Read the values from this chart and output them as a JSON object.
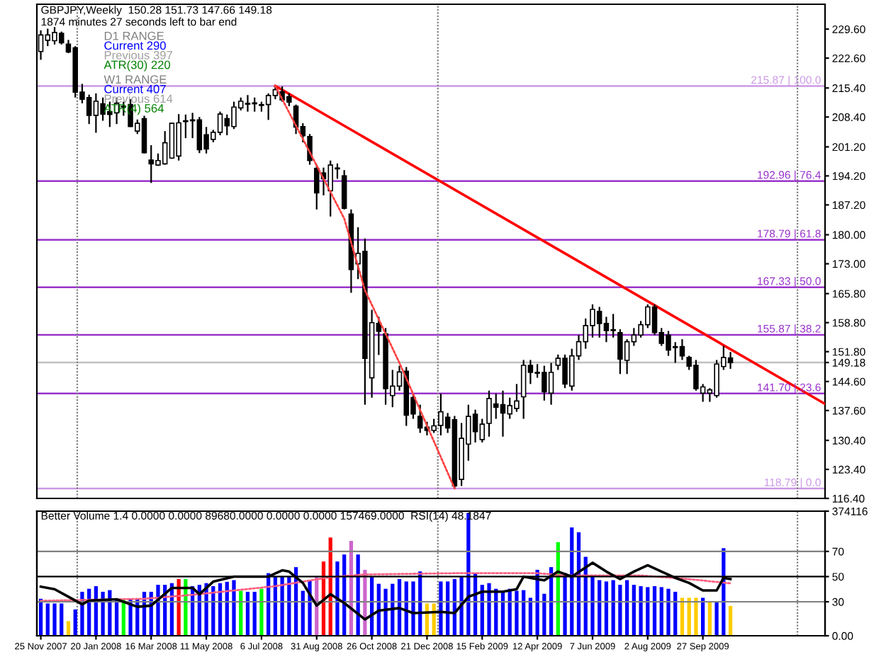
{
  "chart_data": [
    {
      "type": "candlestick",
      "title": "GBPJPY,Weekly  150.28 151.73 147.66 149.18",
      "annotations": [
        "1874 minutes 27 seconds left to bar end",
        "D1 RANGE",
        "Current 290",
        "Previous 397",
        "ATR(30) 220",
        "W1 RANGE",
        "Current 407",
        "Previous 614",
        "ATR(4) 564"
      ],
      "x": [
        "2007-11-25",
        "2007-12-02",
        "2007-12-09",
        "2007-12-16",
        "2007-12-23",
        "2007-12-30",
        "2008-01-06",
        "2008-01-13",
        "2008-01-20",
        "2008-01-27",
        "2008-02-03",
        "2008-02-10",
        "2008-02-17",
        "2008-02-24",
        "2008-03-02",
        "2008-03-09",
        "2008-03-16",
        "2008-03-23",
        "2008-03-30",
        "2008-04-06",
        "2008-04-13",
        "2008-04-20",
        "2008-04-27",
        "2008-05-04",
        "2008-05-11",
        "2008-05-18",
        "2008-05-25",
        "2008-06-01",
        "2008-06-08",
        "2008-06-15",
        "2008-06-22",
        "2008-06-29",
        "2008-07-06",
        "2008-07-13",
        "2008-07-20",
        "2008-07-27",
        "2008-08-03",
        "2008-08-10",
        "2008-08-17",
        "2008-08-24",
        "2008-08-31",
        "2008-09-07",
        "2008-09-14",
        "2008-09-21",
        "2008-09-28",
        "2008-10-05",
        "2008-10-12",
        "2008-10-19",
        "2008-10-26",
        "2008-11-02",
        "2008-11-09",
        "2008-11-16",
        "2008-11-23",
        "2008-11-30",
        "2008-12-07",
        "2008-12-14",
        "2008-12-21",
        "2008-12-28",
        "2009-01-04",
        "2009-01-11",
        "2009-01-18",
        "2009-01-25",
        "2009-02-01",
        "2009-02-08",
        "2009-02-15",
        "2009-02-22",
        "2009-03-01",
        "2009-03-08",
        "2009-03-15",
        "2009-03-22",
        "2009-03-29",
        "2009-04-05",
        "2009-04-12",
        "2009-04-19",
        "2009-04-26",
        "2009-05-03",
        "2009-05-10",
        "2009-05-17",
        "2009-05-24",
        "2009-05-31",
        "2009-06-07",
        "2009-06-14",
        "2009-06-21",
        "2009-06-28",
        "2009-07-05",
        "2009-07-12",
        "2009-07-19",
        "2009-07-26",
        "2009-08-02",
        "2009-08-09",
        "2009-08-16",
        "2009-08-23",
        "2009-08-30",
        "2009-09-06",
        "2009-09-13",
        "2009-09-20",
        "2009-09-27",
        "2009-10-04",
        "2009-10-11",
        "2009-10-18",
        "2009-10-25"
      ],
      "ohlc": [
        [
          224.2,
          229.3,
          222.2,
          228.2
        ],
        [
          226.9,
          229.7,
          225.5,
          228.2
        ],
        [
          226.8,
          230.1,
          225.9,
          228.8
        ],
        [
          228.6,
          229.0,
          225.9,
          226.3
        ],
        [
          226.0,
          227.0,
          223.8,
          224.1
        ],
        [
          225.1,
          225.5,
          213.1,
          214.4
        ],
        [
          214.4,
          216.4,
          211.7,
          212.7
        ],
        [
          213.1,
          213.8,
          206.7,
          208.8
        ],
        [
          208.8,
          214.1,
          204.6,
          212.2
        ],
        [
          211.6,
          213.1,
          207.5,
          209.1
        ],
        [
          209.7,
          212.1,
          206.0,
          209.0
        ],
        [
          209.4,
          213.1,
          206.7,
          211.7
        ],
        [
          211.0,
          212.1,
          208.7,
          210.8
        ],
        [
          211.4,
          212.7,
          206.0,
          206.1
        ],
        [
          205.0,
          207.8,
          204.3,
          206.9
        ],
        [
          208.0,
          208.7,
          199.6,
          199.8
        ],
        [
          198.0,
          201.6,
          192.5,
          197.1
        ],
        [
          196.8,
          199.6,
          196.6,
          197.9
        ],
        [
          197.1,
          205.0,
          196.9,
          202.2
        ],
        [
          198.5,
          207.0,
          198.3,
          206.9
        ],
        [
          199.0,
          209.1,
          197.9,
          207.0
        ],
        [
          207.5,
          209.0,
          203.3,
          207.3
        ],
        [
          207.7,
          209.4,
          203.3,
          207.5
        ],
        [
          207.7,
          208.4,
          199.7,
          200.5
        ],
        [
          204.1,
          206.0,
          199.6,
          200.7
        ],
        [
          203.0,
          205.3,
          202.3,
          204.7
        ],
        [
          204.7,
          209.7,
          204.0,
          209.1
        ],
        [
          208.0,
          209.0,
          204.0,
          206.3
        ],
        [
          206.1,
          212.1,
          205.5,
          210.8
        ],
        [
          210.6,
          213.1,
          210.0,
          212.2
        ],
        [
          211.7,
          213.7,
          209.7,
          211.5
        ],
        [
          211.6,
          213.1,
          209.7,
          211.8
        ],
        [
          211.4,
          212.1,
          209.7,
          211.2
        ],
        [
          211.4,
          214.1,
          207.7,
          213.6
        ],
        [
          213.6,
          215.9,
          212.7,
          215.0
        ],
        [
          214.5,
          215.8,
          212.1,
          212.5
        ],
        [
          213.3,
          214.1,
          211.0,
          212.0
        ],
        [
          211.0,
          211.4,
          204.3,
          206.0
        ],
        [
          206.1,
          206.9,
          202.3,
          203.9
        ],
        [
          203.7,
          204.3,
          196.9,
          197.9
        ],
        [
          196.0,
          196.9,
          186.1,
          190.1
        ],
        [
          194.9,
          196.2,
          189.5,
          193.5
        ],
        [
          190.6,
          197.9,
          184.4,
          196.8
        ],
        [
          196.1,
          197.2,
          193.5,
          195.9
        ],
        [
          194.2,
          195.6,
          186.1,
          186.4
        ],
        [
          185.0,
          186.1,
          166.0,
          171.6
        ],
        [
          173.0,
          181.8,
          169.3,
          175.5
        ],
        [
          176.0,
          179.1,
          139.0,
          150.2
        ],
        [
          145.5,
          161.9,
          140.7,
          158.8
        ],
        [
          158.6,
          160.2,
          151.0,
          156.7
        ],
        [
          156.1,
          157.5,
          139.0,
          142.9
        ],
        [
          141.2,
          147.4,
          138.4,
          143.5
        ],
        [
          143.5,
          148.4,
          142.4,
          146.9
        ],
        [
          147.1,
          148.1,
          133.9,
          136.5
        ],
        [
          140.7,
          141.7,
          135.6,
          136.8
        ],
        [
          136.2,
          139.0,
          132.2,
          133.4
        ],
        [
          133.6,
          134.9,
          131.6,
          132.8
        ],
        [
          132.8,
          135.6,
          132.2,
          133.9
        ],
        [
          134.0,
          141.7,
          131.6,
          137.3
        ],
        [
          136.0,
          137.0,
          132.2,
          133.4
        ],
        [
          135.4,
          136.3,
          118.8,
          119.4
        ],
        [
          121.0,
          134.6,
          119.4,
          130.9
        ],
        [
          129.5,
          139.0,
          125.5,
          136.2
        ],
        [
          136.7,
          137.8,
          129.9,
          132.5
        ],
        [
          130.6,
          135.6,
          129.9,
          134.3
        ],
        [
          134.5,
          142.4,
          131.3,
          140.5
        ],
        [
          139.2,
          141.7,
          135.6,
          138.4
        ],
        [
          139.0,
          142.4,
          131.3,
          137.0
        ],
        [
          136.8,
          140.7,
          135.6,
          138.8
        ],
        [
          138.1,
          144.0,
          137.3,
          139.9
        ],
        [
          140.9,
          149.8,
          135.6,
          148.5
        ],
        [
          148.5,
          149.8,
          144.0,
          146.8
        ],
        [
          146.8,
          148.8,
          145.5,
          146.6
        ],
        [
          146.8,
          148.4,
          140.0,
          142.1
        ],
        [
          141.8,
          149.1,
          139.0,
          146.8
        ],
        [
          148.5,
          151.1,
          147.4,
          150.2
        ],
        [
          150.2,
          151.1,
          143.0,
          144.0
        ],
        [
          143.5,
          152.5,
          142.4,
          150.8
        ],
        [
          150.8,
          155.8,
          149.8,
          154.2
        ],
        [
          154.2,
          159.8,
          152.5,
          158.1
        ],
        [
          158.1,
          163.2,
          155.2,
          162.0
        ],
        [
          161.5,
          162.6,
          155.2,
          158.6
        ],
        [
          158.6,
          160.2,
          154.1,
          156.9
        ],
        [
          157.1,
          160.9,
          155.2,
          156.9
        ],
        [
          156.4,
          157.2,
          146.4,
          150.0
        ],
        [
          149.7,
          154.8,
          146.4,
          154.2
        ],
        [
          154.2,
          157.5,
          153.2,
          155.8
        ],
        [
          155.8,
          159.2,
          155.2,
          158.3
        ],
        [
          158.3,
          163.2,
          157.5,
          162.6
        ],
        [
          162.6,
          163.2,
          155.8,
          156.4
        ],
        [
          156.4,
          157.5,
          153.2,
          153.8
        ],
        [
          155.8,
          156.8,
          150.8,
          152.2
        ],
        [
          153.0,
          154.1,
          149.1,
          152.8
        ],
        [
          153.0,
          154.8,
          149.8,
          150.8
        ],
        [
          150.4,
          150.8,
          147.4,
          148.3
        ],
        [
          148.5,
          149.8,
          142.4,
          142.9
        ],
        [
          141.8,
          144.0,
          139.7,
          143.3
        ],
        [
          141.8,
          143.0,
          139.7,
          142.6
        ],
        [
          141.2,
          149.8,
          140.7,
          148.8
        ],
        [
          148.2,
          153.2,
          147.4,
          150.4
        ],
        [
          150.28,
          151.73,
          147.66,
          149.18
        ]
      ],
      "series": [
        {
          "type": "line",
          "color": "#ff0000",
          "line_style": "solid",
          "x": [
            "2008-07-20",
            "2010-01-29"
          ],
          "values": [
            215.9,
            139.2
          ]
        },
        {
          "type": "line",
          "color": "#ff4040",
          "line_style": "dotted",
          "x": [
            "2008-07-20",
            "2008-09-28",
            "2008-10-19",
            "2008-11-23",
            "2009-01-18"
          ],
          "values": [
            215.9,
            183.9,
            166.6,
            149.1,
            118.8
          ]
        }
      ],
      "xlim": [
        "2007-11-21",
        "2010-01-29"
      ],
      "ylim": [
        116.4,
        235.6
      ],
      "yticks": [
        {
          "value": 229.6,
          "label": "229.60"
        },
        {
          "value": 222.6,
          "label": "222.60"
        },
        {
          "value": 215.4,
          "label": "215.40"
        },
        {
          "value": 208.4,
          "label": "208.40"
        },
        {
          "value": 201.2,
          "label": "201.20"
        },
        {
          "value": 194.2,
          "label": "194.20"
        },
        {
          "value": 187.2,
          "label": "187.20"
        },
        {
          "value": 180,
          "label": "180.00"
        },
        {
          "value": 173,
          "label": "173.00"
        },
        {
          "value": 165.8,
          "label": "165.80"
        },
        {
          "value": 158.8,
          "label": "158.80"
        },
        {
          "value": 151.8,
          "label": "151.80"
        },
        {
          "value": 149.18,
          "label": "149.18"
        },
        {
          "value": 144.6,
          "label": "144.60"
        },
        {
          "value": 137.6,
          "label": "137.60"
        },
        {
          "value": 130.4,
          "label": "130.40"
        },
        {
          "value": 123.4,
          "label": "123.40"
        },
        {
          "value": 116.4,
          "label": "116.40"
        }
      ],
      "tick_labels": "y",
      "ref_lines": [
        {
          "axis": "y",
          "value": 215.87,
          "label": "215.87 | 100.0",
          "color": "#cc99e6",
          "line_style": "solid"
        },
        {
          "axis": "y",
          "value": 192.96,
          "label": "192.96 | 76.4",
          "color": "#9933cc",
          "line_style": "solid"
        },
        {
          "axis": "y",
          "value": 178.79,
          "label": "178.79 | 61.8",
          "color": "#9933cc",
          "line_style": "solid"
        },
        {
          "axis": "y",
          "value": 167.33,
          "label": "167.33 | 50.0",
          "color": "#9933cc",
          "line_style": "solid"
        },
        {
          "axis": "y",
          "value": 155.87,
          "label": "155.87 | 38.2",
          "color": "#9933cc",
          "line_style": "solid"
        },
        {
          "axis": "y",
          "value": 141.7,
          "label": "141.70 | 23.6",
          "color": "#9933cc",
          "line_style": "solid"
        },
        {
          "axis": "y",
          "value": 118.79,
          "label": "118.79 | 0.0",
          "color": "#cc99e6",
          "line_style": "solid"
        },
        {
          "axis": "y",
          "value": 149.18,
          "color": "#c0c0c0",
          "line_style": "solid"
        },
        {
          "axis": "x",
          "value": "2008-01-01",
          "color": "#808080",
          "line_style": "dotted"
        },
        {
          "axis": "x",
          "value": "2009-01-01",
          "color": "#808080",
          "line_style": "dotted"
        },
        {
          "axis": "x",
          "value": "2010-01-01",
          "color": "#808080",
          "line_style": "dotted"
        }
      ]
    },
    {
      "type": "bar",
      "annotations": [
        "Better Volume 1.4 0.0000 0.0000 89680.0000 0.0000 0.0000 157469.0000  RSI(14) 48.1847"
      ],
      "x": [
        "2007-11-25",
        "2007-12-02",
        "2007-12-09",
        "2007-12-16",
        "2007-12-23",
        "2007-12-30",
        "2008-01-06",
        "2008-01-13",
        "2008-01-20",
        "2008-01-27",
        "2008-02-03",
        "2008-02-10",
        "2008-02-17",
        "2008-02-24",
        "2008-03-02",
        "2008-03-09",
        "2008-03-16",
        "2008-03-23",
        "2008-03-30",
        "2008-04-06",
        "2008-04-13",
        "2008-04-20",
        "2008-04-27",
        "2008-05-04",
        "2008-05-11",
        "2008-05-18",
        "2008-05-25",
        "2008-06-01",
        "2008-06-08",
        "2008-06-15",
        "2008-06-22",
        "2008-06-29",
        "2008-07-06",
        "2008-07-13",
        "2008-07-20",
        "2008-07-27",
        "2008-08-03",
        "2008-08-10",
        "2008-08-17",
        "2008-08-24",
        "2008-08-31",
        "2008-09-07",
        "2008-09-14",
        "2008-09-21",
        "2008-09-28",
        "2008-10-05",
        "2008-10-12",
        "2008-10-19",
        "2008-10-26",
        "2008-11-02",
        "2008-11-09",
        "2008-11-16",
        "2008-11-23",
        "2008-11-30",
        "2008-12-07",
        "2008-12-14",
        "2008-12-21",
        "2008-12-28",
        "2009-01-04",
        "2009-01-11",
        "2009-01-18",
        "2009-01-25",
        "2009-02-01",
        "2009-02-08",
        "2009-02-15",
        "2009-02-22",
        "2009-03-01",
        "2009-03-08",
        "2009-03-15",
        "2009-03-22",
        "2009-03-29",
        "2009-04-05",
        "2009-04-12",
        "2009-04-19",
        "2009-04-26",
        "2009-05-03",
        "2009-05-10",
        "2009-05-17",
        "2009-05-24",
        "2009-05-31",
        "2009-06-07",
        "2009-06-14",
        "2009-06-21",
        "2009-06-28",
        "2009-07-05",
        "2009-07-12",
        "2009-07-19",
        "2009-07-26",
        "2009-08-02",
        "2009-08-09",
        "2009-08-16",
        "2009-08-23",
        "2009-08-30",
        "2009-09-06",
        "2009-09-13",
        "2009-09-20",
        "2009-09-27",
        "2009-10-04",
        "2009-10-11",
        "2009-10-18",
        "2009-10-25"
      ],
      "series": [
        {
          "type": "bar",
          "values": [
            111000,
            97000,
            97000,
            97000,
            44000,
            79000,
            132000,
            141000,
            149000,
            132000,
            137000,
            111000,
            111000,
            111000,
            111000,
            132000,
            132000,
            153000,
            153000,
            158000,
            170000,
            170000,
            149000,
            153000,
            158000,
            149000,
            158000,
            162000,
            167000,
            135000,
            132000,
            132000,
            141000,
            188000,
            179000,
            179000,
            179000,
            206000,
            135000,
            167000,
            176000,
            223000,
            295000,
            223000,
            244000,
            285000,
            244000,
            198000,
            176000,
            156000,
            141000,
            156000,
            170000,
            163000,
            163000,
            193000,
            97000,
            97000,
            163000,
            163000,
            170000,
            176000,
            369000,
            188000,
            153000,
            158000,
            141000,
            135000,
            141000,
            135000,
            137000,
            114000,
            198000,
            126000,
            206000,
            281000,
            188000,
            325000,
            311000,
            237000,
            181000,
            167000,
            163000,
            167000,
            153000,
            167000,
            153000,
            149000,
            146000,
            149000,
            146000,
            141000,
            132000,
            114000,
            114000,
            114000,
            114000,
            100000,
            100000,
            263000,
            89680
          ],
          "colors": [
            "#0000ff",
            "#0000ff",
            "#0000ff",
            "#0000ff",
            "#ffcc00",
            "#0000ff",
            "#0000ff",
            "#0000ff",
            "#0000ff",
            "#0000ff",
            "#0000ff",
            "#0000ff",
            "#00ff00",
            "#0000ff",
            "#0000ff",
            "#0000ff",
            "#0000ff",
            "#0000ff",
            "#0000ff",
            "#0000ff",
            "#ff0000",
            "#00ff00",
            "#0000ff",
            "#0000ff",
            "#0000ff",
            "#0000ff",
            "#0000ff",
            "#0000ff",
            "#0000ff",
            "#00ff00",
            "#0000ff",
            "#0000ff",
            "#00ff00",
            "#0000ff",
            "#0000ff",
            "#0000ff",
            "#0000ff",
            "#0000ff",
            "#0000ff",
            "#0000ff",
            "#cc66cc",
            "#ff0000",
            "#ff0000",
            "#0000ff",
            "#0000ff",
            "#cc66cc",
            "#0000ff",
            "#cc66cc",
            "#0000ff",
            "#0000ff",
            "#0000ff",
            "#0000ff",
            "#0000ff",
            "#0000ff",
            "#0000ff",
            "#0000ff",
            "#ffcc00",
            "#ffcc00",
            "#0000ff",
            "#0000ff",
            "#0000ff",
            "#0000ff",
            "#0000ff",
            "#0000ff",
            "#0000ff",
            "#0000ff",
            "#0000ff",
            "#0000ff",
            "#0000ff",
            "#0000ff",
            "#0000ff",
            "#0000ff",
            "#0000ff",
            "#0000ff",
            "#0000ff",
            "#00ff00",
            "#0000ff",
            "#0000ff",
            "#0000ff",
            "#0000ff",
            "#0000ff",
            "#0000ff",
            "#0000ff",
            "#0000ff",
            "#0000ff",
            "#0000ff",
            "#0000ff",
            "#0000ff",
            "#0000ff",
            "#0000ff",
            "#0000ff",
            "#0000ff",
            "#0000ff",
            "#ffcc00",
            "#ffcc00",
            "#ffcc00",
            "#0000ff",
            "#ffcc00",
            "#0000ff",
            "#0000ff",
            "#ffcc00"
          ]
        },
        {
          "type": "line",
          "color": "#ff6080",
          "line_style": "dotted",
          "x": [
            "2007-11-25",
            "2008-03-09",
            "2008-04-27",
            "2008-07-20",
            "2008-09-14",
            "2008-10-19",
            "2009-01-25",
            "2009-04-12",
            "2009-05-10",
            "2009-07-26",
            "2009-09-13",
            "2009-10-25"
          ],
          "values": [
            105000,
            111000,
            123000,
            149000,
            176000,
            184000,
            188000,
            188000,
            181000,
            181000,
            170000,
            157469
          ]
        },
        {
          "type": "line",
          "color": "#000000",
          "line_style": "solid",
          "axis": "y2",
          "x": [
            "2007-11-25",
            "2007-12-09",
            "2007-12-23",
            "2008-01-06",
            "2008-01-13",
            "2008-02-10",
            "2008-03-02",
            "2008-03-16",
            "2008-04-06",
            "2008-04-27",
            "2008-05-04",
            "2008-05-18",
            "2008-06-08",
            "2008-06-29",
            "2008-07-13",
            "2008-07-27",
            "2008-08-03",
            "2008-08-17",
            "2008-08-31",
            "2008-09-14",
            "2008-09-28",
            "2008-10-19",
            "2008-11-02",
            "2008-11-23",
            "2008-12-07",
            "2009-01-04",
            "2009-01-18",
            "2009-02-01",
            "2009-02-15",
            "2009-03-08",
            "2009-03-22",
            "2009-03-29",
            "2009-04-19",
            "2009-05-03",
            "2009-05-17",
            "2009-06-07",
            "2009-06-21",
            "2009-07-05",
            "2009-07-19",
            "2009-08-02",
            "2009-08-16",
            "2009-08-30",
            "2009-09-13",
            "2009-09-27",
            "2009-10-11",
            "2009-10-18",
            "2009-10-25"
          ],
          "values": [
            42,
            40,
            34,
            28,
            31,
            32,
            26,
            27,
            41,
            41,
            36,
            46,
            50,
            50,
            50,
            55,
            54,
            45,
            27,
            36,
            29,
            16,
            23,
            25,
            21,
            22,
            21,
            34,
            38,
            38,
            40,
            50,
            47,
            54,
            50,
            61,
            54,
            48,
            54,
            59,
            54,
            49,
            45,
            39,
            39,
            49,
            48
          ]
        }
      ],
      "xlim": [
        "2007-11-21",
        "2010-01-29"
      ],
      "xticks": [
        {
          "value": "2007-11-25",
          "label": "25 Nov 2007"
        },
        {
          "value": "2008-01-20",
          "label": "20 Jan 2008"
        },
        {
          "value": "2008-03-16",
          "label": "16 Mar 2008"
        },
        {
          "value": "2008-05-11",
          "label": "11 May 2008"
        },
        {
          "value": "2008-07-06",
          "label": "6 Jul 2008"
        },
        {
          "value": "2008-08-31",
          "label": "31 Aug 2008"
        },
        {
          "value": "2008-10-26",
          "label": "26 Oct 2008"
        },
        {
          "value": "2008-12-21",
          "label": "21 Dec 2008"
        },
        {
          "value": "2009-02-15",
          "label": "15 Feb 2009"
        },
        {
          "value": "2009-04-12",
          "label": "12 Apr 2009"
        },
        {
          "value": "2009-06-07",
          "label": "7 Jun 2009"
        },
        {
          "value": "2009-08-02",
          "label": "2 Aug 2009"
        },
        {
          "value": "2009-09-27",
          "label": "27 Sep 2009"
        }
      ],
      "ylim": [
        0,
        374116
      ],
      "yticks": [
        {
          "value": 0,
          "label": "0.00"
        },
        374116
      ],
      "y2lim": [
        3,
        102
      ],
      "y2ticks": [
        30,
        50,
        70
      ],
      "ref_lines": [
        {
          "axis": "y2",
          "value": 70,
          "color": "#808080",
          "line_style": "solid"
        },
        {
          "axis": "y2",
          "value": 50,
          "color": "#000000",
          "line_style": "solid"
        },
        {
          "axis": "y2",
          "value": 30,
          "color": "#808080",
          "line_style": "solid"
        },
        {
          "axis": "x",
          "value": "2008-01-01",
          "color": "#808080",
          "line_style": "dotted"
        },
        {
          "axis": "x",
          "value": "2009-01-01",
          "color": "#808080",
          "line_style": "dotted"
        },
        {
          "axis": "x",
          "value": "2010-01-01",
          "color": "#808080",
          "line_style": "dotted"
        }
      ]
    }
  ]
}
